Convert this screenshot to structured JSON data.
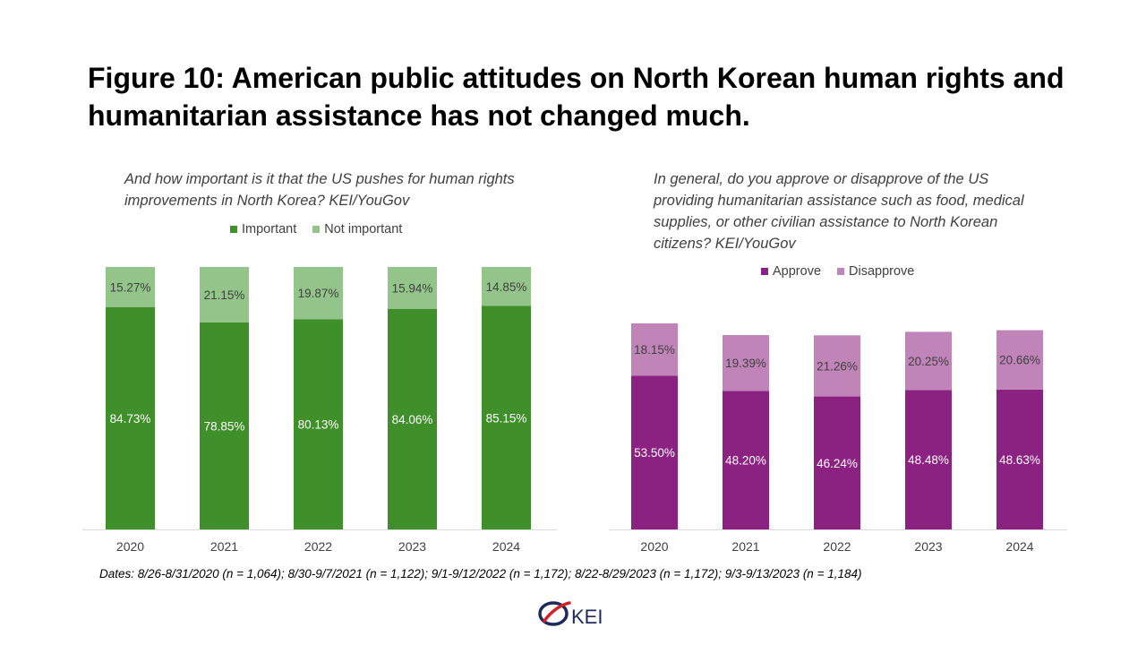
{
  "title": "Figure 10: American public attitudes on North Korean human rights and humanitarian assistance has not changed much.",
  "footnote": "Dates: 8/26-8/31/2020 (n = 1,064); 8/30-9/7/2021 (n = 1,122); 9/1-9/12/2022 (n = 1,172); 8/22-8/29/2023 (n = 1,172); 9/3-9/13/2023 (n = 1,184)",
  "logo_text": "KEI",
  "chart_data": [
    {
      "type": "bar",
      "stacked": true,
      "subtitle": "And how important is it that the US pushes for human rights improvements in North Korea? KEI/YouGov",
      "categories": [
        "2020",
        "2021",
        "2022",
        "2023",
        "2024"
      ],
      "series": [
        {
          "name": "Important",
          "color": "#3f8f2a",
          "label_color": "#ffffff",
          "values": [
            84.73,
            78.85,
            80.13,
            84.06,
            85.15
          ],
          "labels": [
            "84.73%",
            "78.85%",
            "80.13%",
            "84.06%",
            "85.15%"
          ]
        },
        {
          "name": "Not important",
          "color": "#93c58a",
          "label_color": "#404040",
          "values": [
            15.27,
            21.15,
            19.87,
            15.94,
            14.85
          ],
          "labels": [
            "15.27%",
            "21.15%",
            "19.87%",
            "15.94%",
            "14.85%"
          ]
        }
      ],
      "ylim": [
        0,
        100
      ],
      "legend": "top",
      "grid": false
    },
    {
      "type": "bar",
      "stacked": true,
      "subtitle": "In general, do you approve or disapprove of the US providing humanitarian assistance such as food, medical supplies, or other civilian assistance to North Korean citizens? KEI/YouGov",
      "categories": [
        "2020",
        "2021",
        "2022",
        "2023",
        "2024"
      ],
      "series": [
        {
          "name": "Approve",
          "color": "#8b2181",
          "label_color": "#ffffff",
          "values": [
            53.5,
            48.2,
            46.24,
            48.48,
            48.63
          ],
          "labels": [
            "53.50%",
            "48.20%",
            "46.24%",
            "48.48%",
            "48.63%"
          ]
        },
        {
          "name": "Disapprove",
          "color": "#c084b8",
          "label_color": "#404040",
          "values": [
            18.15,
            19.39,
            21.26,
            20.25,
            20.66
          ],
          "labels": [
            "18.15%",
            "19.39%",
            "21.26%",
            "20.25%",
            "20.66%"
          ]
        }
      ],
      "ylim": [
        0,
        100
      ],
      "legend": "top",
      "grid": false
    }
  ]
}
